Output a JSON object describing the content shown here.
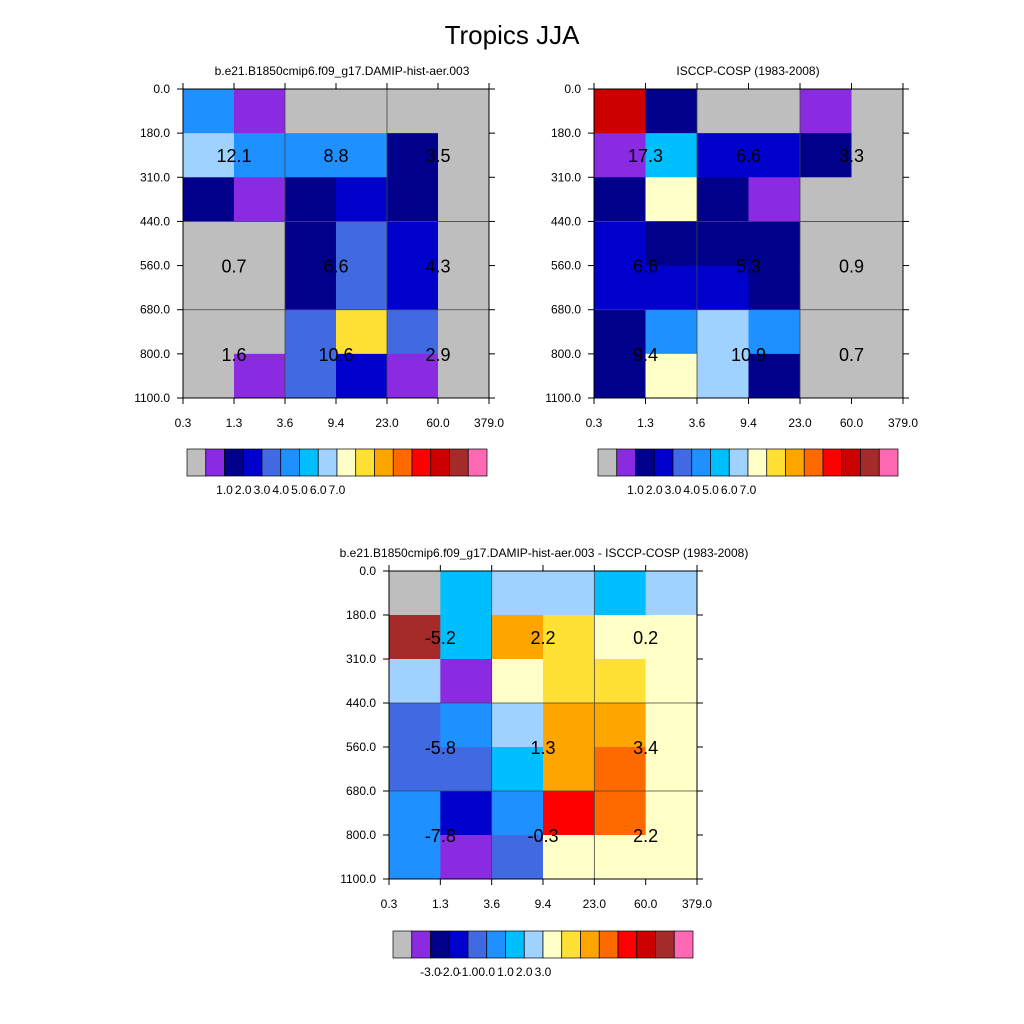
{
  "figure": {
    "title": "Tropics JJA"
  },
  "chart_data": [
    {
      "type": "heatmap",
      "title": "b.e21.B1850cmip6.f09_g17.DAMIP-hist-aer.003",
      "x_ticks": [
        "0.3",
        "1.3",
        "3.6",
        "9.4",
        "23.0",
        "60.0",
        "379.0"
      ],
      "y_ticks": [
        "0.0",
        "180.0",
        "310.0",
        "440.0",
        "560.0",
        "680.0",
        "800.0",
        "1100.0"
      ],
      "cell_colors": [
        [
          "#1e90ff",
          "#8a2be2",
          "#bebebe",
          "#bebebe",
          "#bebebe",
          "#bebebe"
        ],
        [
          "#a0d2ff",
          "#1e90ff",
          "#1e90ff",
          "#1e90ff",
          "#00008b",
          "#bebebe"
        ],
        [
          "#00008b",
          "#8a2be2",
          "#00008b",
          "#0000cd",
          "#00008b",
          "#bebebe"
        ],
        [
          "#bebebe",
          "#bebebe",
          "#00008b",
          "#4169e1",
          "#0000cd",
          "#bebebe"
        ],
        [
          "#bebebe",
          "#bebebe",
          "#00008b",
          "#4169e1",
          "#0000cd",
          "#bebebe"
        ],
        [
          "#bebebe",
          "#bebebe",
          "#4169e1",
          "#ffe135",
          "#4169e1",
          "#bebebe"
        ],
        [
          "#bebebe",
          "#8a2be2",
          "#4169e1",
          "#0000cd",
          "#8a2be2",
          "#bebebe"
        ]
      ],
      "block_labels": [
        [
          "12.1",
          "8.8",
          "3.5"
        ],
        [
          "0.7",
          "6.6",
          "4.3"
        ],
        [
          "1.6",
          "10.6",
          "2.9"
        ]
      ],
      "colorbar": {
        "colors": [
          "#bebebe",
          "#8a2be2",
          "#00008b",
          "#0000cd",
          "#4169e1",
          "#1e90ff",
          "#00bfff",
          "#a0d2ff",
          "#ffffc8",
          "#ffe135",
          "#ffa500",
          "#ff6a00",
          "#ff0000",
          "#cd0000",
          "#a52a2a",
          "#ff69b4"
        ],
        "labels": [
          "1.0",
          "2.0",
          "3.0",
          "4.0",
          "5.0",
          "6.0",
          "7.0"
        ]
      }
    },
    {
      "type": "heatmap",
      "title": "ISCCP-COSP (1983-2008)",
      "x_ticks": [
        "0.3",
        "1.3",
        "3.6",
        "9.4",
        "23.0",
        "60.0",
        "379.0"
      ],
      "y_ticks": [
        "0.0",
        "180.0",
        "310.0",
        "440.0",
        "560.0",
        "680.0",
        "800.0",
        "1100.0"
      ],
      "cell_colors": [
        [
          "#cd0000",
          "#00008b",
          "#bebebe",
          "#bebebe",
          "#8a2be2",
          "#bebebe"
        ],
        [
          "#8a2be2",
          "#00bfff",
          "#0000cd",
          "#0000cd",
          "#00008b",
          "#bebebe"
        ],
        [
          "#00008b",
          "#ffffc8",
          "#00008b",
          "#8a2be2",
          "#bebebe",
          "#bebebe"
        ],
        [
          "#0000cd",
          "#00008b",
          "#00008b",
          "#00008b",
          "#bebebe",
          "#bebebe"
        ],
        [
          "#0000cd",
          "#0000cd",
          "#0000cd",
          "#00008b",
          "#bebebe",
          "#bebebe"
        ],
        [
          "#00008b",
          "#1e90ff",
          "#a0d2ff",
          "#1e90ff",
          "#bebebe",
          "#bebebe"
        ],
        [
          "#00008b",
          "#ffffc8",
          "#a0d2ff",
          "#00008b",
          "#bebebe",
          "#bebebe"
        ]
      ],
      "block_labels": [
        [
          "17.3",
          "6.6",
          "3.3"
        ],
        [
          "6.6",
          "5.3",
          "0.9"
        ],
        [
          "9.4",
          "10.9",
          "0.7"
        ]
      ],
      "colorbar": {
        "colors": [
          "#bebebe",
          "#8a2be2",
          "#00008b",
          "#0000cd",
          "#4169e1",
          "#1e90ff",
          "#00bfff",
          "#a0d2ff",
          "#ffffc8",
          "#ffe135",
          "#ffa500",
          "#ff6a00",
          "#ff0000",
          "#cd0000",
          "#a52a2a",
          "#ff69b4"
        ],
        "labels": [
          "1.0",
          "2.0",
          "3.0",
          "4.0",
          "5.0",
          "6.0",
          "7.0"
        ]
      }
    },
    {
      "type": "heatmap",
      "title": "b.e21.B1850cmip6.f09_g17.DAMIP-hist-aer.003 - ISCCP-COSP (1983-2008)",
      "x_ticks": [
        "0.3",
        "1.3",
        "3.6",
        "9.4",
        "23.0",
        "60.0",
        "379.0"
      ],
      "y_ticks": [
        "0.0",
        "180.0",
        "310.0",
        "440.0",
        "560.0",
        "680.0",
        "800.0",
        "1100.0"
      ],
      "cell_colors": [
        [
          "#bebebe",
          "#00bfff",
          "#a0d2ff",
          "#a0d2ff",
          "#00bfff",
          "#a0d2ff"
        ],
        [
          "#a52a2a",
          "#00bfff",
          "#ffa500",
          "#ffe135",
          "#ffffc8",
          "#ffffc8"
        ],
        [
          "#a0d2ff",
          "#8a2be2",
          "#ffffc8",
          "#ffe135",
          "#ffe135",
          "#ffffc8"
        ],
        [
          "#4169e1",
          "#1e90ff",
          "#a0d2ff",
          "#ffa500",
          "#ffa500",
          "#ffffc8"
        ],
        [
          "#4169e1",
          "#4169e1",
          "#00bfff",
          "#ffa500",
          "#ff6a00",
          "#ffffc8"
        ],
        [
          "#1e90ff",
          "#0000cd",
          "#1e90ff",
          "#ff0000",
          "#ff6a00",
          "#ffffc8"
        ],
        [
          "#1e90ff",
          "#8a2be2",
          "#4169e1",
          "#ffffc8",
          "#ffffc8",
          "#ffffc8"
        ]
      ],
      "block_labels": [
        [
          "-5.2",
          "2.2",
          "0.2"
        ],
        [
          "-5.8",
          "1.3",
          "3.4"
        ],
        [
          "-7.8",
          "-0.3",
          "2.2"
        ]
      ],
      "colorbar": {
        "colors": [
          "#bebebe",
          "#8a2be2",
          "#00008b",
          "#0000cd",
          "#4169e1",
          "#1e90ff",
          "#00bfff",
          "#a0d2ff",
          "#ffffc8",
          "#ffe135",
          "#ffa500",
          "#ff6a00",
          "#ff0000",
          "#cd0000",
          "#a52a2a",
          "#ff69b4"
        ],
        "labels": [
          "-3.0",
          "-2.0",
          "-1.0",
          "0.0",
          "1.0",
          "2.0",
          "3.0"
        ]
      }
    }
  ]
}
